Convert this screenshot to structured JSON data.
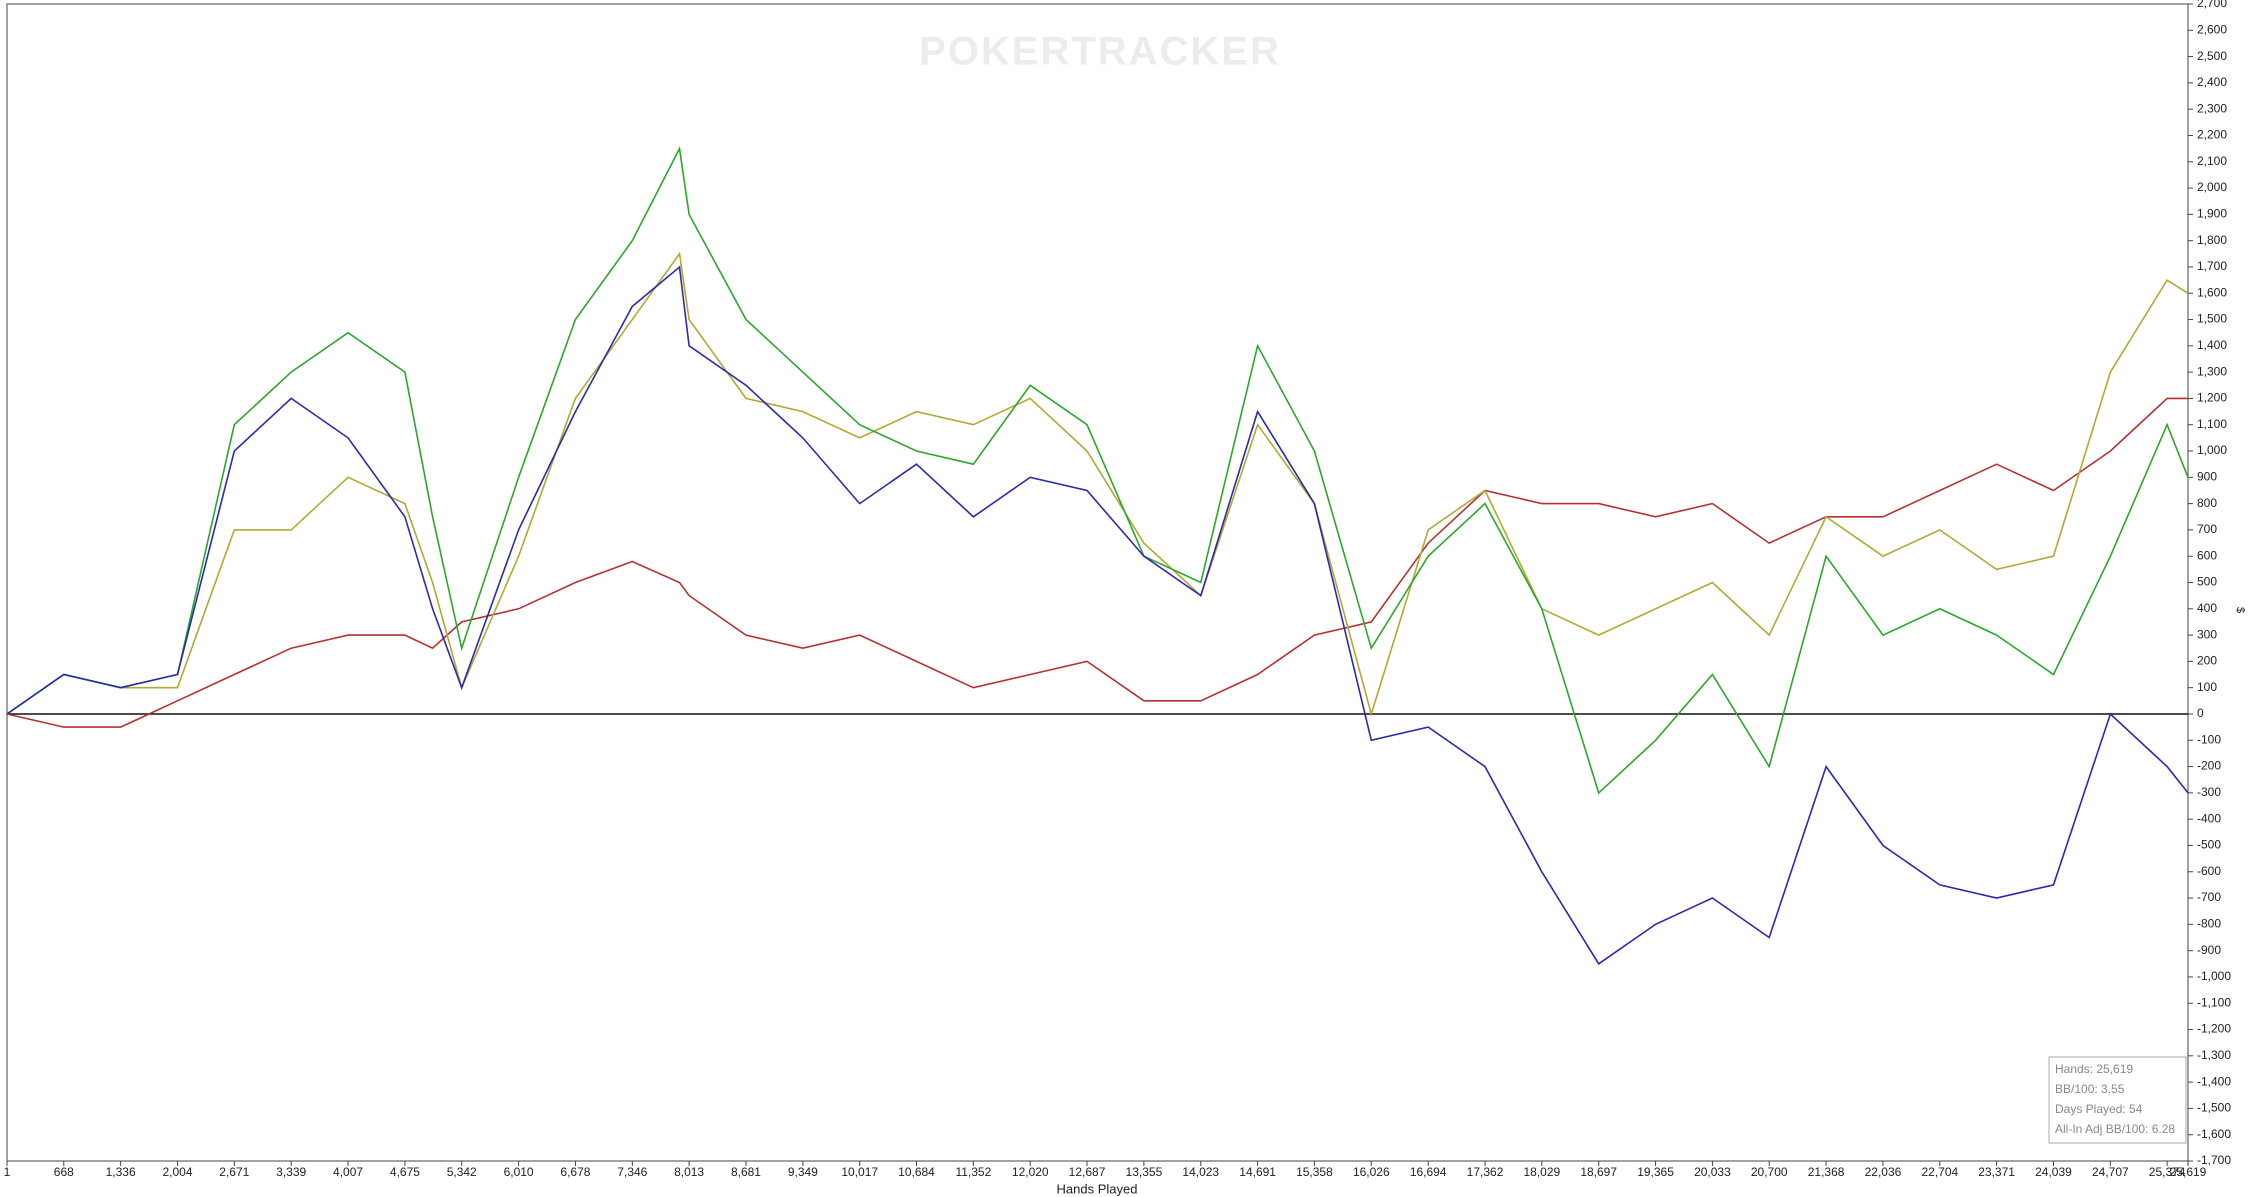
{
  "chart_data": {
    "type": "line",
    "watermark": "POKERTRACKER",
    "x_label": "Hands Played",
    "y_label": "$",
    "x": [
      1,
      668,
      1336,
      2004,
      2671,
      3339,
      4007,
      4675,
      5000,
      5342,
      6010,
      6678,
      7346,
      7900,
      8013,
      8681,
      9349,
      10017,
      10684,
      11352,
      12020,
      12687,
      13355,
      14023,
      14691,
      15358,
      16026,
      16694,
      17362,
      18029,
      18697,
      19365,
      20033,
      20700,
      21368,
      22036,
      22704,
      23371,
      24039,
      24707,
      25374,
      25619
    ],
    "xlim": [
      1,
      25619
    ],
    "xticks": [
      1,
      {
        "value": 668,
        "label": "668"
      },
      {
        "value": 1336,
        "label": "1,336"
      },
      {
        "value": 2004,
        "label": "2,004"
      },
      {
        "value": 2671,
        "label": "2,671"
      },
      {
        "value": 3339,
        "label": "3,339"
      },
      {
        "value": 4007,
        "label": "4,007"
      },
      {
        "value": 4675,
        "label": "4,675"
      },
      {
        "value": 5342,
        "label": "5,342"
      },
      {
        "value": 6010,
        "label": "6,010"
      },
      {
        "value": 6678,
        "label": "6,678"
      },
      {
        "value": 7346,
        "label": "7,346"
      },
      {
        "value": 8013,
        "label": "8,013"
      },
      {
        "value": 8681,
        "label": "8,681"
      },
      {
        "value": 9349,
        "label": "9,349"
      },
      {
        "value": 10017,
        "label": "10,017"
      },
      {
        "value": 10684,
        "label": "10,684"
      },
      {
        "value": 11352,
        "label": "11,352"
      },
      {
        "value": 12020,
        "label": "12,020"
      },
      {
        "value": 12687,
        "label": "12,687"
      },
      {
        "value": 13355,
        "label": "13,355"
      },
      {
        "value": 14023,
        "label": "14,023"
      },
      {
        "value": 14691,
        "label": "14,691"
      },
      {
        "value": 15358,
        "label": "15,358"
      },
      {
        "value": 16026,
        "label": "16,026"
      },
      {
        "value": 16694,
        "label": "16,694"
      },
      {
        "value": 17362,
        "label": "17,362"
      },
      {
        "value": 18029,
        "label": "18,029"
      },
      {
        "value": 18697,
        "label": "18,697"
      },
      {
        "value": 19365,
        "label": "19,365"
      },
      {
        "value": 20033,
        "label": "20,033"
      },
      {
        "value": 20700,
        "label": "20,700"
      },
      {
        "value": 21368,
        "label": "21,368"
      },
      {
        "value": 22036,
        "label": "22,036"
      },
      {
        "value": 22704,
        "label": "22,704"
      },
      {
        "value": 23371,
        "label": "23,371"
      },
      {
        "value": 24039,
        "label": "24,039"
      },
      {
        "value": 24707,
        "label": "24,707"
      },
      {
        "value": 25374,
        "label": "25,374"
      },
      {
        "value": 25619,
        "label": "25,619"
      }
    ],
    "ylim": [
      -1700,
      2700
    ],
    "yticks": [
      {
        "value": -1700,
        "label": "-1,700"
      },
      {
        "value": -1600,
        "label": "-1,600"
      },
      {
        "value": -1500,
        "label": "-1,500"
      },
      {
        "value": -1400,
        "label": "-1,400"
      },
      {
        "value": -1300,
        "label": "-1,300"
      },
      {
        "value": -1200,
        "label": "-1,200"
      },
      {
        "value": -1100,
        "label": "-1,100"
      },
      {
        "value": -1000,
        "label": "-1,000"
      },
      -900,
      -800,
      -700,
      -600,
      -500,
      -400,
      -300,
      -200,
      -100,
      0,
      100,
      200,
      300,
      400,
      500,
      600,
      700,
      800,
      900,
      {
        "value": 1000,
        "label": "1,000"
      },
      {
        "value": 1100,
        "label": "1,100"
      },
      {
        "value": 1200,
        "label": "1,200"
      },
      {
        "value": 1300,
        "label": "1,300"
      },
      {
        "value": 1400,
        "label": "1,400"
      },
      {
        "value": 1500,
        "label": "1,500"
      },
      {
        "value": 1600,
        "label": "1,600"
      },
      {
        "value": 1700,
        "label": "1,700"
      },
      {
        "value": 1800,
        "label": "1,800"
      },
      {
        "value": 1900,
        "label": "1,900"
      },
      {
        "value": 2000,
        "label": "2,000"
      },
      {
        "value": 2100,
        "label": "2,100"
      },
      {
        "value": 2200,
        "label": "2,200"
      },
      {
        "value": 2300,
        "label": "2,300"
      },
      {
        "value": 2400,
        "label": "2,400"
      },
      {
        "value": 2500,
        "label": "2,500"
      },
      {
        "value": 2600,
        "label": "2,600"
      },
      {
        "value": 2700,
        "label": "2,700"
      }
    ],
    "series": [
      {
        "color": "#b83030",
        "values": [
          0,
          -50,
          -50,
          50,
          150,
          250,
          300,
          300,
          250,
          350,
          400,
          500,
          580,
          500,
          450,
          300,
          250,
          300,
          200,
          100,
          150,
          200,
          50,
          50,
          150,
          300,
          350,
          650,
          850,
          800,
          800,
          750,
          800,
          650,
          750,
          750,
          850,
          950,
          850,
          1000,
          1200,
          1200
        ]
      },
      {
        "color": "#b5a830",
        "values": [
          0,
          150,
          100,
          100,
          700,
          700,
          900,
          800,
          500,
          100,
          600,
          1200,
          1500,
          1750,
          1500,
          1200,
          1150,
          1050,
          1150,
          1100,
          1200,
          1000,
          650,
          450,
          1100,
          800,
          0,
          700,
          850,
          400,
          300,
          400,
          500,
          300,
          750,
          600,
          700,
          550,
          600,
          1300,
          1650,
          1600
        ]
      },
      {
        "color": "#2aa82a",
        "values": [
          0,
          150,
          100,
          150,
          1100,
          1300,
          1450,
          1300,
          750,
          250,
          900,
          1500,
          1800,
          2150,
          1900,
          1500,
          1300,
          1100,
          1000,
          950,
          1250,
          1100,
          600,
          500,
          1400,
          1000,
          250,
          600,
          800,
          400,
          -300,
          -100,
          150,
          -200,
          600,
          300,
          400,
          300,
          150,
          600,
          1100,
          900
        ]
      },
      {
        "color": "#2a2ab0",
        "values": [
          0,
          150,
          100,
          150,
          1000,
          1200,
          1050,
          750,
          400,
          100,
          700,
          1150,
          1550,
          1700,
          1400,
          1250,
          1050,
          800,
          950,
          750,
          900,
          850,
          600,
          450,
          1150,
          800,
          -100,
          -50,
          -200,
          -600,
          -950,
          -800,
          -700,
          -850,
          -200,
          -500,
          -650,
          -700,
          -650,
          0,
          -200,
          -300
        ]
      }
    ],
    "stats": [
      "Hands: 25,619",
      "BB/100: 3.55",
      "Days Played: 54",
      "All-In Adj BB/100: 6.28"
    ]
  }
}
